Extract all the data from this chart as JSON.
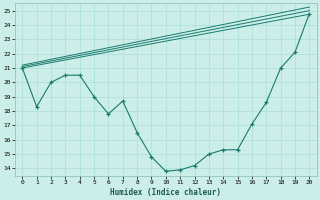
{
  "xlabel": "Humidex (Indice chaleur)",
  "bg_color": "#cceee8",
  "grid_color": "#aaddd8",
  "line_color": "#1a7a6e",
  "xlim": [
    -0.5,
    20.5
  ],
  "ylim": [
    13.5,
    25.5
  ],
  "yticks": [
    14,
    15,
    16,
    17,
    18,
    19,
    20,
    21,
    22,
    23,
    24,
    25
  ],
  "xticks": [
    0,
    1,
    2,
    3,
    4,
    5,
    6,
    7,
    8,
    9,
    10,
    11,
    12,
    13,
    14,
    15,
    16,
    17,
    18,
    19,
    20
  ],
  "main_x": [
    0,
    1,
    2,
    3,
    4,
    5,
    6,
    7,
    8,
    9,
    10,
    11,
    12,
    13,
    14,
    15,
    16,
    17,
    18,
    19,
    20
  ],
  "main_y": [
    21.0,
    18.3,
    20.0,
    20.5,
    20.5,
    19.0,
    17.8,
    18.7,
    16.5,
    14.8,
    13.8,
    13.9,
    14.2,
    15.0,
    15.3,
    15.3,
    17.1,
    18.6,
    21.0,
    22.1,
    24.8
  ],
  "env_lines": [
    {
      "x": [
        0,
        20
      ],
      "y": [
        21.0,
        24.75
      ]
    },
    {
      "x": [
        0,
        20
      ],
      "y": [
        21.1,
        25.0
      ]
    },
    {
      "x": [
        0,
        20
      ],
      "y": [
        21.2,
        25.25
      ]
    }
  ]
}
